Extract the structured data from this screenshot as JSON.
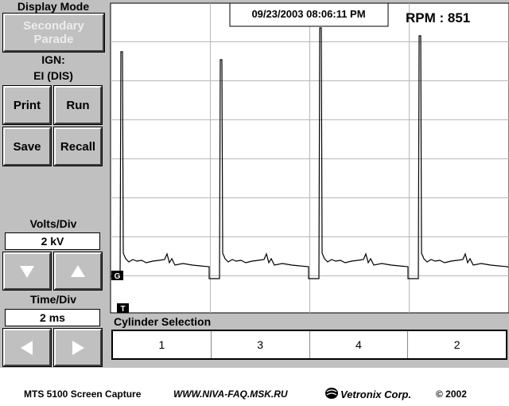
{
  "sidebar": {
    "display_mode_label": "Display Mode",
    "display_mode_button": "Secondary Parade",
    "ign_label": "IGN:",
    "ign_value": "EI (DIS)",
    "buttons": [
      "Print",
      "Run",
      "Save",
      "Recall"
    ],
    "volts_div_label": "Volts/Div",
    "volts_div_value": "2 kV",
    "time_div_label": "Time/Div",
    "time_div_value": "2 ms"
  },
  "scope": {
    "timestamp": "09/23/2003 08:06:11 PM",
    "rpm": "RPM : 851",
    "ground_marker": "G",
    "trigger_marker": "T"
  },
  "cylinder_selection": {
    "label": "Cylinder Selection",
    "cylinders": [
      "1",
      "3",
      "4",
      "2"
    ]
  },
  "footer": {
    "caption": "MTS 5100 Screen Capture",
    "website": "WWW.NIVA-FAQ.MSK.RU",
    "company": "Vetronix Corp.",
    "copyright": "© 2002"
  }
}
